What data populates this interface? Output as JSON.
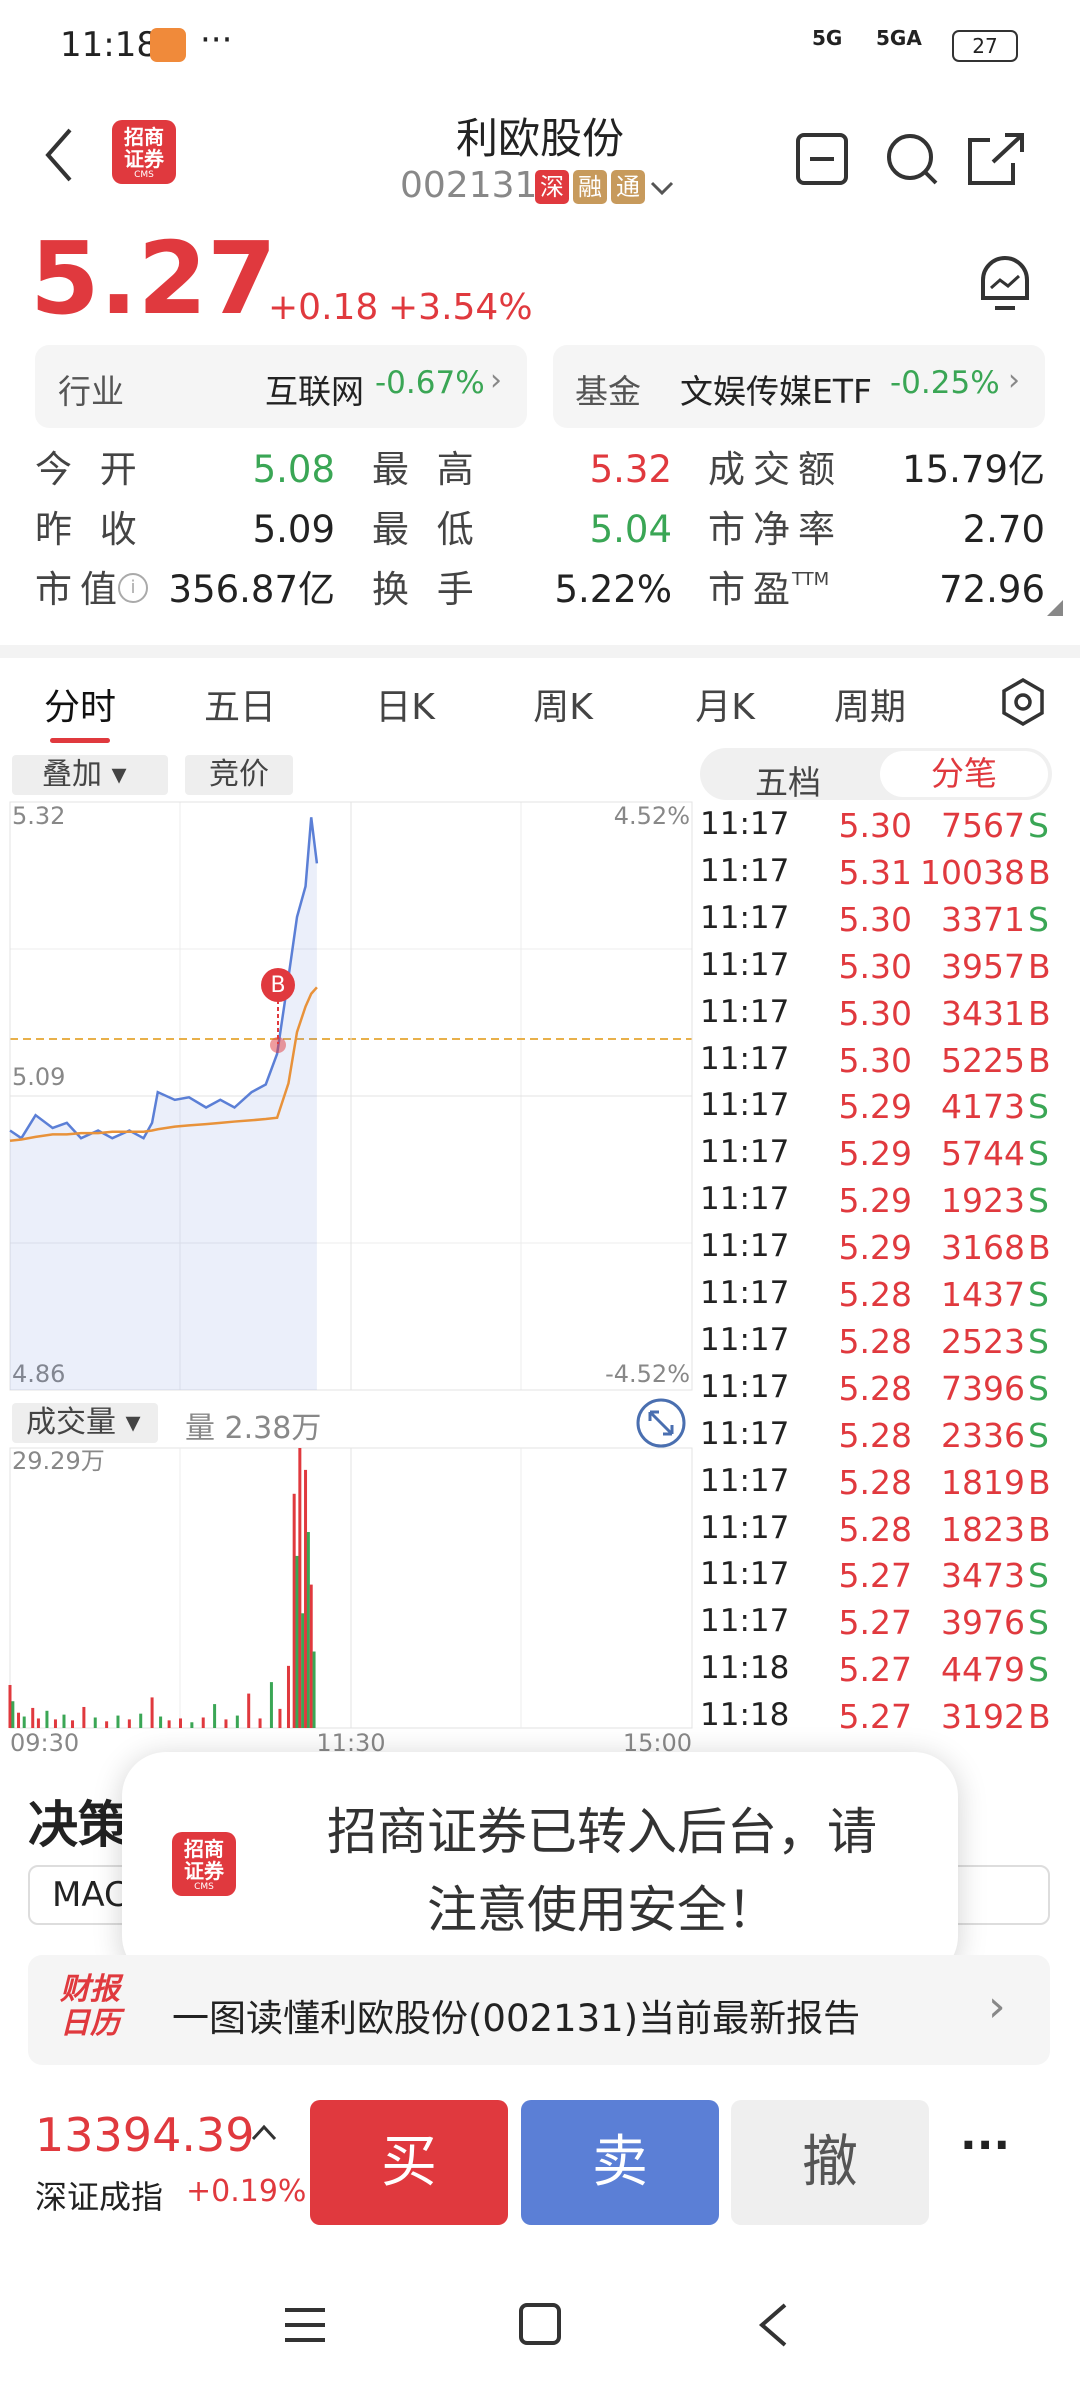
{
  "status_bar": {
    "time": "11:18",
    "battery": "27",
    "network": [
      "5G",
      "5GA"
    ]
  },
  "logo": {
    "lines": [
      "招商",
      "证券"
    ],
    "sub": "CMS"
  },
  "header": {
    "title": "利欧股份",
    "code": "002131",
    "badges": [
      "深",
      "融",
      "通"
    ]
  },
  "quote": {
    "price": "5.27",
    "change": "+0.18",
    "change_pct": "+3.54%"
  },
  "sector": [
    {
      "label": "行业",
      "name": "互联网",
      "change": "-0.67%"
    },
    {
      "label": "基金",
      "name": "文娱传媒ETF",
      "change": "-0.25%"
    }
  ],
  "stats": [
    [
      {
        "label": "今 开",
        "value": "5.08",
        "tone": "down"
      },
      {
        "label": "最 高",
        "value": "5.32",
        "tone": "up"
      },
      {
        "label": "成交额",
        "value": "15.79亿",
        "tone": "flat"
      }
    ],
    [
      {
        "label": "昨 收",
        "value": "5.09",
        "tone": "flat"
      },
      {
        "label": "最 低",
        "value": "5.04",
        "tone": "down"
      },
      {
        "label": "市净率",
        "value": "2.70",
        "tone": "flat"
      }
    ],
    [
      {
        "label": "市值",
        "value": "356.87亿",
        "tone": "flat"
      },
      {
        "label": "换 手",
        "value": "5.22%",
        "tone": "flat"
      },
      {
        "label": "市盈",
        "sup": "TTM",
        "value": "72.96",
        "tone": "flat"
      }
    ]
  ],
  "tabs": [
    "分时",
    "五日",
    "日K",
    "周K",
    "月K",
    "周期"
  ],
  "chart_buttons": [
    "叠加",
    "竞价"
  ],
  "panel_tabs": [
    "五档",
    "分笔"
  ],
  "chart": {
    "type": "line",
    "marker": "B",
    "xlim": [
      0,
      240
    ],
    "xticks": [
      {
        "value": 0,
        "label": "09:30"
      },
      {
        "value": 120,
        "label": "11:30"
      },
      {
        "value": 240,
        "label": "15:00"
      }
    ],
    "ylim": [
      4.86,
      5.32
    ],
    "yticks": [
      4.86,
      5.09,
      5.32
    ],
    "y2lim": [
      -4.52,
      4.52
    ],
    "y2ticks": [
      {
        "value": -4.52,
        "label": "-4.52%"
      },
      {
        "value": 4.52,
        "label": "4.52%"
      }
    ],
    "x": [
      0,
      4,
      9,
      15,
      20,
      25,
      31,
      36,
      42,
      47,
      50,
      52,
      58,
      63,
      69,
      74,
      79,
      85,
      90,
      94,
      98,
      101,
      104,
      106,
      108
    ],
    "series": [
      {
        "color": "#5b7fd6",
        "values": [
          5.063,
          5.057,
          5.075,
          5.065,
          5.069,
          5.057,
          5.063,
          5.057,
          5.063,
          5.057,
          5.069,
          5.093,
          5.087,
          5.089,
          5.081,
          5.087,
          5.081,
          5.093,
          5.099,
          5.123,
          5.183,
          5.23,
          5.254,
          5.308,
          5.272
        ]
      },
      {
        "color": "#e8923a",
        "values": [
          5.055,
          5.056,
          5.058,
          5.06,
          5.06,
          5.061,
          5.061,
          5.062,
          5.062,
          5.062,
          5.063,
          5.064,
          5.066,
          5.067,
          5.068,
          5.069,
          5.07,
          5.071,
          5.072,
          5.073,
          5.1,
          5.14,
          5.16,
          5.17,
          5.175
        ]
      }
    ]
  },
  "volume": {
    "type": "bar",
    "label": "成交量",
    "summary": "量 2.38万",
    "ylim": [
      0,
      29.29
    ],
    "yticks": [
      {
        "value": 29.29,
        "label": "29.29万"
      }
    ],
    "up_color": "#e0393e",
    "down_color": "#3aa655",
    "x": [
      0,
      1,
      3,
      5,
      8,
      10,
      13,
      16,
      19,
      22,
      26,
      30,
      34,
      38,
      42,
      46,
      50,
      53,
      56,
      60,
      64,
      68,
      72,
      76,
      80,
      84,
      88,
      92,
      95,
      98,
      100,
      101,
      102,
      103,
      104,
      105,
      106,
      107
    ],
    "values": [
      4.5,
      2.8,
      1.6,
      1.2,
      2.1,
      1.0,
      1.8,
      0.9,
      1.4,
      0.8,
      2.2,
      1.1,
      0.7,
      1.3,
      0.9,
      1.5,
      3.2,
      1.2,
      0.8,
      1.0,
      0.6,
      1.1,
      2.5,
      0.9,
      1.3,
      3.6,
      1.0,
      4.8,
      2.0,
      6.5,
      24.5,
      18.0,
      29.29,
      12.0,
      27.0,
      20.5,
      15.0,
      8.0
    ],
    "up": [
      true,
      false,
      true,
      false,
      true,
      true,
      false,
      true,
      false,
      true,
      true,
      false,
      true,
      false,
      true,
      false,
      true,
      false,
      true,
      true,
      false,
      true,
      false,
      true,
      false,
      true,
      true,
      false,
      true,
      true,
      true,
      false,
      true,
      false,
      true,
      false,
      true,
      false
    ]
  },
  "ticks": [
    [
      "11:17",
      "5.30",
      "7567",
      "S"
    ],
    [
      "11:17",
      "5.31",
      "10038",
      "B"
    ],
    [
      "11:17",
      "5.30",
      "3371",
      "S"
    ],
    [
      "11:17",
      "5.30",
      "3957",
      "B"
    ],
    [
      "11:17",
      "5.30",
      "3431",
      "B"
    ],
    [
      "11:17",
      "5.30",
      "5225",
      "B"
    ],
    [
      "11:17",
      "5.29",
      "4173",
      "S"
    ],
    [
      "11:17",
      "5.29",
      "5744",
      "S"
    ],
    [
      "11:17",
      "5.29",
      "1923",
      "S"
    ],
    [
      "11:17",
      "5.29",
      "3168",
      "B"
    ],
    [
      "11:17",
      "5.28",
      "1437",
      "S"
    ],
    [
      "11:17",
      "5.28",
      "2523",
      "S"
    ],
    [
      "11:17",
      "5.28",
      "7396",
      "S"
    ],
    [
      "11:17",
      "5.28",
      "2336",
      "S"
    ],
    [
      "11:17",
      "5.28",
      "1819",
      "B"
    ],
    [
      "11:17",
      "5.28",
      "1823",
      "B"
    ],
    [
      "11:17",
      "5.27",
      "3473",
      "S"
    ],
    [
      "11:17",
      "5.27",
      "3976",
      "S"
    ],
    [
      "11:18",
      "5.27",
      "4479",
      "S"
    ],
    [
      "11:18",
      "5.27",
      "3192",
      "B"
    ]
  ],
  "decision": {
    "title": "决策",
    "chip": "MAC"
  },
  "toast": {
    "lines": [
      "招商证券已转入后台，请",
      "注意使用安全！"
    ]
  },
  "report": {
    "badge": [
      "财报",
      "日历"
    ],
    "text": "一图读懂利欧股份(002131)当前最新报告"
  },
  "index": {
    "value": "13394.39",
    "name": "深证成指",
    "change": "+0.19%"
  },
  "actions": [
    "买",
    "卖",
    "撤"
  ]
}
